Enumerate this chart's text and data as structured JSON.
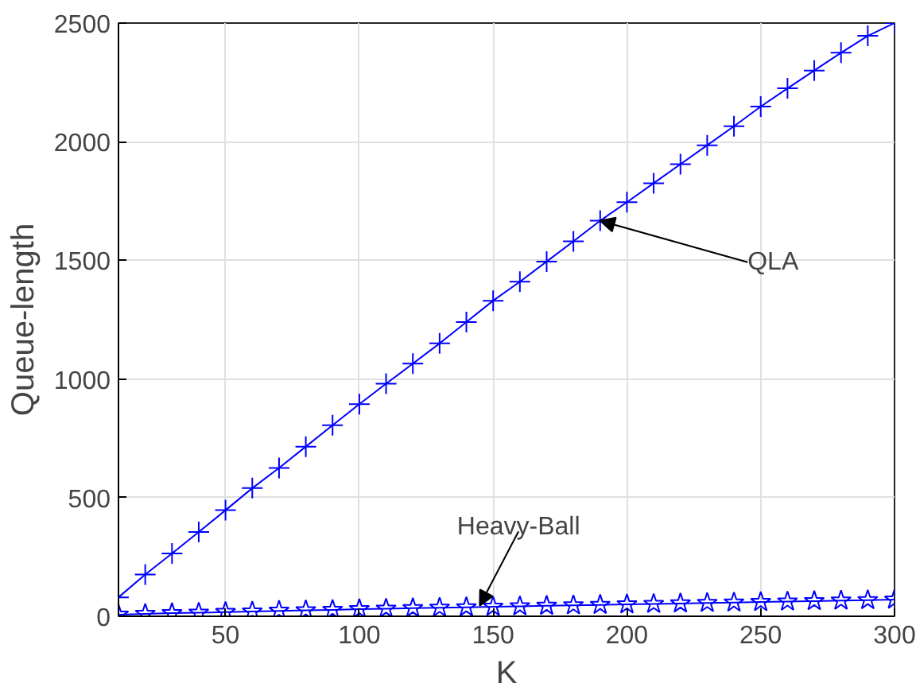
{
  "chart_data": {
    "type": "line",
    "xlabel": "K",
    "ylabel": "Queue-length",
    "x": [
      10,
      20,
      30,
      40,
      50,
      60,
      70,
      80,
      90,
      100,
      110,
      120,
      130,
      140,
      150,
      160,
      170,
      180,
      190,
      200,
      210,
      220,
      230,
      240,
      250,
      260,
      270,
      280,
      290,
      300
    ],
    "series": [
      {
        "color": "#0000ff",
        "marker": "cross",
        "values": [
          80,
          176,
          265,
          355,
          447,
          540,
          625,
          715,
          805,
          894,
          980,
          1065,
          1150,
          1240,
          1330,
          1410,
          1495,
          1580,
          1667,
          1745,
          1825,
          1905,
          1985,
          2065,
          2148,
          2225,
          2300,
          2375,
          2446,
          2500
        ]
      },
      {
        "color": "#0000ff",
        "marker": "star",
        "values": [
          7,
          10,
          13,
          15,
          18,
          20,
          23,
          25,
          27,
          30,
          32,
          34,
          36,
          38,
          40,
          42,
          44,
          46,
          48,
          50,
          52,
          54,
          56,
          58,
          60,
          62,
          64,
          66,
          68,
          70
        ]
      }
    ],
    "annotations": [
      {
        "text": "QLA",
        "x": 190,
        "y": 1667
      },
      {
        "text": "Heavy-Ball",
        "x": 145,
        "y": 45
      }
    ],
    "xlim": [
      10,
      300
    ],
    "xticks": [
      50,
      100,
      150,
      200,
      250,
      300
    ],
    "ylim": [
      0,
      2500
    ],
    "yticks": [
      0,
      500,
      1000,
      1500,
      2000,
      2500
    ],
    "grid": true,
    "line_style": "solid"
  }
}
